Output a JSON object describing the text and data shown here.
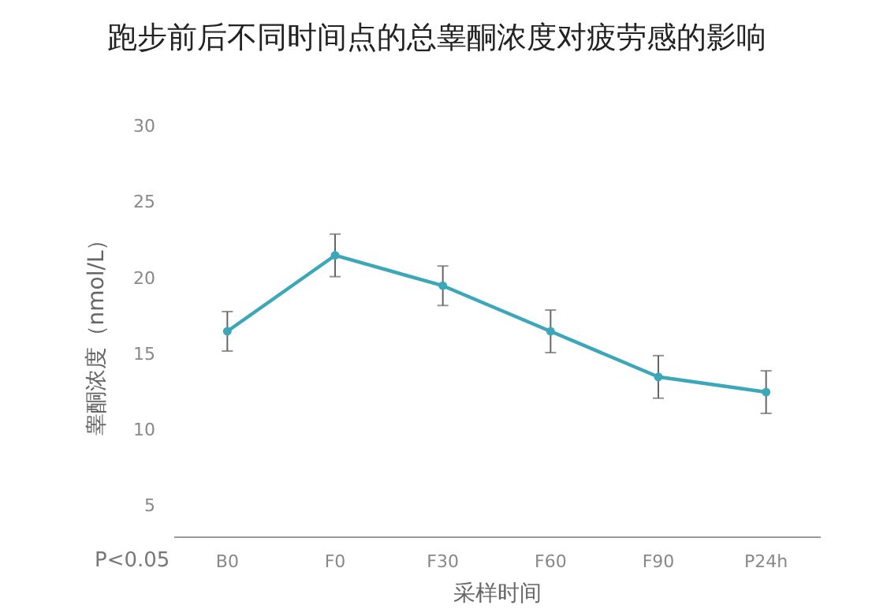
{
  "chart_data": {
    "type": "line",
    "title": "跑步前后不同时间点的总睾酮浓度对疲劳感的影响",
    "xlabel": "采样时间",
    "ylabel": "睾酮浓度（nmol/L）",
    "categories": [
      "B0",
      "F0",
      "F30",
      "F60",
      "F90",
      "P24h"
    ],
    "series": [
      {
        "color": "#3ba7b8",
        "values": [
          16.5,
          21.5,
          19.5,
          16.5,
          13.5,
          12.5
        ],
        "errors": [
          1.3,
          1.4,
          1.3,
          1.4,
          1.4,
          1.4
        ]
      }
    ],
    "ylim": [
      3,
      30
    ],
    "yticks": [
      5,
      10,
      15,
      20,
      25,
      30
    ],
    "grid": false,
    "marker": "circle",
    "line_style": "solid",
    "annotations": [
      "P<0.05"
    ]
  }
}
